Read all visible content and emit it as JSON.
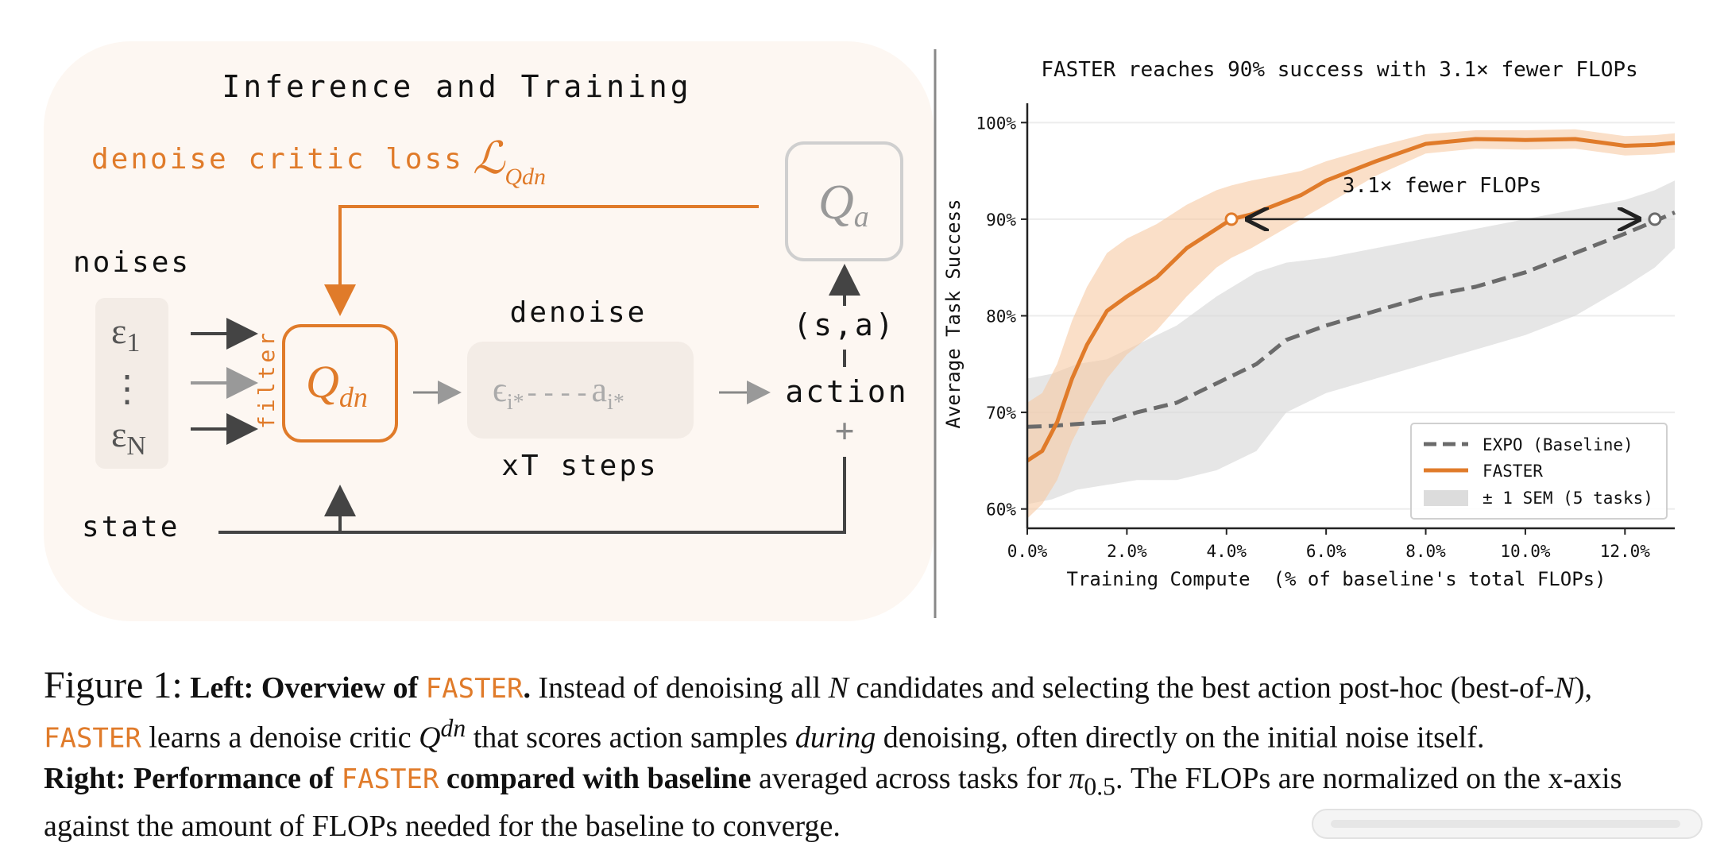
{
  "diagram": {
    "title": "Inference and Training",
    "critic_loss_label": "denoise critic loss",
    "critic_loss_symbol": "ℒ",
    "critic_loss_sub": "Qdn",
    "noises_label": "noises",
    "eps1_base": "ε",
    "eps1_sub": "1",
    "dots": "⋮",
    "epsN_base": "ε",
    "epsN_sub": "N",
    "filter_label": "filter",
    "qdn_base": "Q",
    "qdn_sub": "dn",
    "denoise_label": "denoise",
    "eps_i": "ϵ",
    "eps_i_sub": "i*",
    "dash_text": "- - - -",
    "a_i": "a",
    "a_i_sub": "i*",
    "steps_label": "xT steps",
    "sa_label": "(s,a)",
    "action_label": "action",
    "plus": "+",
    "qa_base": "Q",
    "qa_sub": "a",
    "state_label": "state",
    "colors": {
      "accent": "#e07b2a",
      "panel": "#fdf7f2",
      "dark": "#333333",
      "gray": "#8a8a8a"
    }
  },
  "chart_data": {
    "type": "line",
    "title": "FASTER reaches 90% success with 3.1× fewer FLOPs",
    "xlabel": "Training Compute  (% of baseline's total FLOPs)",
    "ylabel": "Average Task Success",
    "xlim": [
      0,
      13
    ],
    "ylim": [
      58,
      102
    ],
    "xticks": [
      0,
      2,
      4,
      6,
      8,
      10,
      12
    ],
    "xtick_labels": [
      "0.0%",
      "2.0%",
      "4.0%",
      "6.0%",
      "8.0%",
      "10.0%",
      "12.0%"
    ],
    "yticks": [
      60,
      70,
      80,
      90,
      100
    ],
    "ytick_labels": [
      "60%",
      "70%",
      "80%",
      "90%",
      "100%"
    ],
    "grid": true,
    "legend_position": "bottom-right",
    "annotation": {
      "text": "3.1× fewer FLOPs",
      "from": [
        4.1,
        90
      ],
      "to": [
        12.6,
        90
      ]
    },
    "series": [
      {
        "name": "EXPO (Baseline)",
        "style": "dashed",
        "color": "#6b6b6b",
        "x": [
          0,
          0.5,
          1.0,
          1.6,
          2.2,
          3.0,
          3.8,
          4.6,
          5.2,
          6.0,
          7.0,
          8.0,
          9.0,
          10.0,
          11.0,
          12.0,
          12.6,
          13.0
        ],
        "y": [
          68.5,
          68.6,
          68.8,
          69.0,
          70.0,
          71.0,
          73.0,
          75.0,
          77.5,
          79.0,
          80.5,
          82.0,
          83.0,
          84.5,
          86.5,
          88.5,
          89.8,
          90.7
        ],
        "lower": [
          60.5,
          61.0,
          62.0,
          62.5,
          63.0,
          63.0,
          64.0,
          66.0,
          70.0,
          72.0,
          73.5,
          75.0,
          76.5,
          78.0,
          80.0,
          83.0,
          85.0,
          87.0
        ],
        "upper": [
          73.5,
          74.0,
          75.0,
          75.5,
          77.0,
          79.0,
          82.0,
          84.5,
          85.5,
          86.0,
          87.0,
          88.0,
          89.0,
          90.0,
          91.0,
          92.0,
          93.0,
          94.0
        ]
      },
      {
        "name": "FASTER",
        "style": "solid",
        "color": "#e07b2a",
        "x": [
          0,
          0.3,
          0.6,
          0.9,
          1.2,
          1.6,
          2.0,
          2.6,
          3.2,
          3.8,
          4.1,
          4.5,
          5.0,
          5.5,
          6.0,
          7.0,
          8.0,
          9.0,
          10.0,
          11.0,
          12.0,
          12.6,
          13.0
        ],
        "y": [
          65.0,
          66.0,
          69.0,
          73.5,
          77.0,
          80.5,
          82.0,
          84.0,
          87.0,
          89.0,
          90.0,
          90.5,
          91.5,
          92.5,
          94.0,
          96.0,
          97.8,
          98.3,
          98.2,
          98.3,
          97.6,
          97.7,
          97.9
        ],
        "lower": [
          59.0,
          60.5,
          63.0,
          67.0,
          70.0,
          73.5,
          76.0,
          78.5,
          82.0,
          85.0,
          86.0,
          87.0,
          88.5,
          90.0,
          91.5,
          94.5,
          96.8,
          97.3,
          97.2,
          97.3,
          96.6,
          96.7,
          96.9
        ],
        "upper": [
          71.0,
          72.0,
          75.0,
          79.5,
          83.0,
          86.5,
          88.0,
          89.5,
          91.5,
          93.0,
          93.5,
          94.0,
          94.5,
          95.0,
          96.0,
          97.5,
          98.8,
          99.2,
          99.2,
          99.3,
          98.6,
          98.7,
          98.9
        ]
      }
    ],
    "band_legend": "± 1 SEM (5 tasks)"
  },
  "caption": {
    "fig_label": "Figure 1:",
    "p1_bold": "Left: Overview of",
    "faster": "FASTER",
    "dot": ".",
    "p1_text": " Instead of denoising all ",
    "N": "N",
    "p1_text2": " candidates and selecting the best action post-hoc (best-of-",
    "N2": "N",
    "p1_text3": "), ",
    "p1_text4": " learns a denoise critic ",
    "Q": "Q",
    "dn": "dn",
    "p1_text5": " that scores action samples ",
    "during": "during",
    "p1_text6": " denoising, often directly on the initial noise itself.",
    "p2_bold": "Right: Performance of",
    "p2_bold2": "compared with baseline",
    "p2_text": " averaged across tasks for ",
    "pi": "π",
    "pi_sub": "0.5",
    "p2_text2": ". The FLOPs are normalized on the x-axis against the amount of FLOPs needed for the baseline to converge."
  }
}
